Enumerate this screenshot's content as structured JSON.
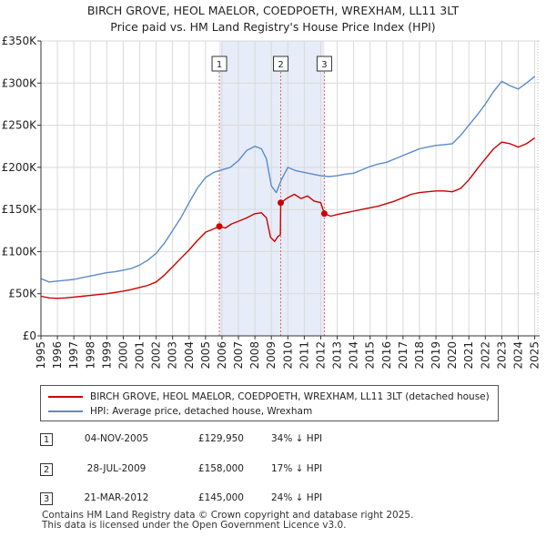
{
  "chart_data": {
    "type": "line",
    "title": "BIRCH GROVE, HEOL MAELOR, COEDPOETH, WREXHAM, LL11 3LT",
    "subtitle": "Price paid vs. HM Land Registry's House Price Index (HPI)",
    "xlim": [
      1995,
      2025.3
    ],
    "ylim": [
      0,
      350000
    ],
    "y_ticks": [
      0,
      50000,
      100000,
      150000,
      200000,
      250000,
      300000,
      350000
    ],
    "y_tick_labels": [
      "£0",
      "£50K",
      "£100K",
      "£150K",
      "£200K",
      "£250K",
      "£300K",
      "£350K"
    ],
    "x_ticks": [
      1995,
      1996,
      1997,
      1998,
      1999,
      2000,
      2001,
      2002,
      2003,
      2004,
      2005,
      2006,
      2007,
      2008,
      2009,
      2010,
      2011,
      2012,
      2013,
      2014,
      2015,
      2016,
      2017,
      2018,
      2019,
      2020,
      2021,
      2022,
      2023,
      2024,
      2025
    ],
    "x_tick_labels": [
      "1995",
      "1996",
      "1997",
      "1998",
      "1999",
      "2000",
      "2001",
      "2002",
      "2003",
      "2004",
      "2005",
      "2006",
      "2007",
      "2008",
      "2009",
      "2010",
      "2011",
      "2012",
      "2013",
      "2014",
      "2015",
      "2016",
      "2017",
      "2018",
      "2019",
      "2020",
      "2021",
      "2022",
      "2023",
      "2024",
      "2025"
    ],
    "shaded_ranges": [
      [
        2005.84,
        2009.57
      ],
      [
        2009.57,
        2012.22
      ]
    ],
    "series": [
      {
        "name": "BIRCH GROVE, HEOL MAELOR, COEDPOETH, WREXHAM, LL11 3LT (detached house)",
        "color": "#cc0000",
        "points": [
          [
            1995.0,
            47000
          ],
          [
            1995.5,
            45000
          ],
          [
            1996.0,
            44500
          ],
          [
            1996.5,
            45000
          ],
          [
            1997.0,
            46000
          ],
          [
            1997.5,
            47000
          ],
          [
            1998.0,
            48000
          ],
          [
            1998.5,
            49000
          ],
          [
            1999.0,
            50000
          ],
          [
            1999.5,
            51500
          ],
          [
            2000.0,
            53000
          ],
          [
            2000.5,
            55000
          ],
          [
            2001.0,
            57500
          ],
          [
            2001.5,
            60000
          ],
          [
            2002.0,
            64000
          ],
          [
            2002.5,
            72000
          ],
          [
            2003.0,
            82000
          ],
          [
            2003.5,
            92000
          ],
          [
            2004.0,
            102000
          ],
          [
            2004.5,
            113000
          ],
          [
            2005.0,
            123000
          ],
          [
            2005.5,
            127000
          ],
          [
            2005.84,
            129950
          ],
          [
            2006.2,
            128000
          ],
          [
            2006.6,
            133000
          ],
          [
            2007.0,
            136000
          ],
          [
            2007.5,
            140000
          ],
          [
            2008.0,
            145000
          ],
          [
            2008.4,
            146000
          ],
          [
            2008.7,
            140000
          ],
          [
            2008.95,
            117000
          ],
          [
            2009.2,
            112000
          ],
          [
            2009.4,
            118000
          ],
          [
            2009.55,
            120000
          ],
          [
            2009.57,
            158000
          ],
          [
            2010.0,
            164000
          ],
          [
            2010.4,
            168000
          ],
          [
            2010.8,
            163000
          ],
          [
            2011.2,
            166000
          ],
          [
            2011.6,
            160000
          ],
          [
            2012.0,
            158000
          ],
          [
            2012.22,
            145000
          ],
          [
            2012.6,
            142000
          ],
          [
            2013.0,
            144000
          ],
          [
            2013.5,
            146000
          ],
          [
            2014.0,
            148000
          ],
          [
            2014.5,
            150000
          ],
          [
            2015.0,
            152000
          ],
          [
            2015.5,
            154000
          ],
          [
            2016.0,
            157000
          ],
          [
            2016.5,
            160000
          ],
          [
            2017.0,
            164000
          ],
          [
            2017.5,
            168000
          ],
          [
            2018.0,
            170000
          ],
          [
            2018.5,
            171000
          ],
          [
            2019.0,
            172000
          ],
          [
            2019.5,
            172000
          ],
          [
            2020.0,
            171000
          ],
          [
            2020.5,
            175000
          ],
          [
            2021.0,
            185000
          ],
          [
            2021.5,
            198000
          ],
          [
            2022.0,
            210000
          ],
          [
            2022.5,
            222000
          ],
          [
            2023.0,
            230000
          ],
          [
            2023.5,
            228000
          ],
          [
            2024.0,
            224000
          ],
          [
            2024.5,
            228000
          ],
          [
            2025.0,
            235000
          ]
        ]
      },
      {
        "name": "HPI: Average price, detached house, Wrexham",
        "color": "#5b8bc9",
        "points": [
          [
            1995.0,
            68000
          ],
          [
            1995.5,
            64000
          ],
          [
            1996.0,
            65000
          ],
          [
            1996.5,
            66000
          ],
          [
            1997.0,
            67000
          ],
          [
            1997.5,
            69000
          ],
          [
            1998.0,
            71000
          ],
          [
            1998.5,
            73000
          ],
          [
            1999.0,
            75000
          ],
          [
            1999.5,
            76000
          ],
          [
            2000.0,
            78000
          ],
          [
            2000.5,
            80000
          ],
          [
            2001.0,
            84000
          ],
          [
            2001.5,
            90000
          ],
          [
            2002.0,
            98000
          ],
          [
            2002.5,
            110000
          ],
          [
            2003.0,
            125000
          ],
          [
            2003.5,
            140000
          ],
          [
            2004.0,
            158000
          ],
          [
            2004.5,
            175000
          ],
          [
            2005.0,
            188000
          ],
          [
            2005.5,
            194000
          ],
          [
            2006.0,
            197000
          ],
          [
            2006.5,
            200000
          ],
          [
            2007.0,
            208000
          ],
          [
            2007.5,
            220000
          ],
          [
            2008.0,
            225000
          ],
          [
            2008.4,
            222000
          ],
          [
            2008.7,
            210000
          ],
          [
            2009.0,
            178000
          ],
          [
            2009.3,
            170000
          ],
          [
            2009.6,
            185000
          ],
          [
            2010.0,
            200000
          ],
          [
            2010.5,
            196000
          ],
          [
            2011.0,
            194000
          ],
          [
            2011.5,
            192000
          ],
          [
            2012.0,
            190000
          ],
          [
            2012.5,
            189000
          ],
          [
            2013.0,
            190000
          ],
          [
            2013.5,
            192000
          ],
          [
            2014.0,
            193000
          ],
          [
            2014.5,
            197000
          ],
          [
            2015.0,
            201000
          ],
          [
            2015.5,
            204000
          ],
          [
            2016.0,
            206000
          ],
          [
            2016.5,
            210000
          ],
          [
            2017.0,
            214000
          ],
          [
            2017.5,
            218000
          ],
          [
            2018.0,
            222000
          ],
          [
            2018.5,
            224000
          ],
          [
            2019.0,
            226000
          ],
          [
            2019.5,
            227000
          ],
          [
            2020.0,
            228000
          ],
          [
            2020.5,
            238000
          ],
          [
            2021.0,
            250000
          ],
          [
            2021.5,
            262000
          ],
          [
            2022.0,
            275000
          ],
          [
            2022.5,
            290000
          ],
          [
            2023.0,
            302000
          ],
          [
            2023.5,
            297000
          ],
          [
            2024.0,
            293000
          ],
          [
            2024.5,
            300000
          ],
          [
            2025.0,
            308000
          ]
        ]
      }
    ],
    "sales": [
      {
        "label": "1",
        "x": 2005.84,
        "price": 129950
      },
      {
        "label": "2",
        "x": 2009.57,
        "price": 158000
      },
      {
        "label": "3",
        "x": 2012.22,
        "price": 145000
      }
    ]
  },
  "legend": {
    "property_label": "BIRCH GROVE, HEOL MAELOR, COEDPOETH, WREXHAM, LL11 3LT (detached house)",
    "hpi_label": "HPI: Average price, detached house, Wrexham",
    "property_color": "#cc0000",
    "hpi_color": "#5b8bc9"
  },
  "transactions": [
    {
      "num": "1",
      "date": "04-NOV-2005",
      "price": "£129,950",
      "hpi": "34% ↓ HPI"
    },
    {
      "num": "2",
      "date": "28-JUL-2009",
      "price": "£158,000",
      "hpi": "17% ↓ HPI"
    },
    {
      "num": "3",
      "date": "21-MAR-2012",
      "price": "£145,000",
      "hpi": "24% ↓ HPI"
    }
  ],
  "footer": {
    "line1": "Contains HM Land Registry data © Crown copyright and database right 2025.",
    "line2": "This data is licensed under the Open Government Licence v3.0."
  }
}
